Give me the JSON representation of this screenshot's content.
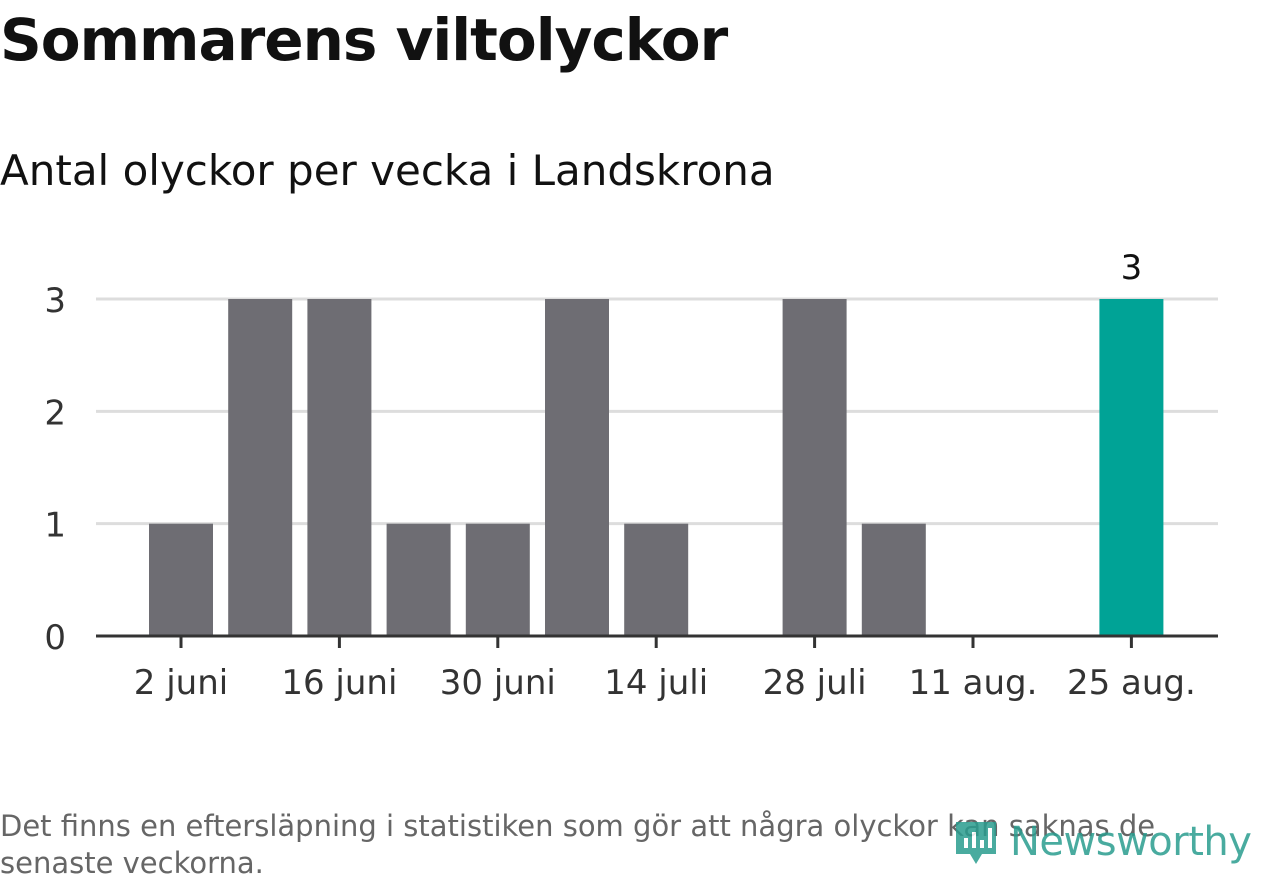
{
  "title": "Sommarens viltolyckor",
  "subtitle": "Antal olyckor per vecka i Landskrona",
  "footnote": "Det finns en eftersläpning i statistiken som gör att några olyckor kan saknas de senaste veckorna.",
  "brand": {
    "name": "Newsworthy",
    "icon": "newsworthy-logo-icon",
    "color": "#2a9d8f"
  },
  "chart_data": {
    "type": "bar",
    "categories": [
      "2 juni",
      "9 juni",
      "16 juni",
      "23 juni",
      "30 juni",
      "7 juli",
      "14 juli",
      "21 juli",
      "28 juli",
      "4 aug.",
      "11 aug.",
      "18 aug.",
      "25 aug."
    ],
    "values": [
      1,
      3,
      3,
      1,
      1,
      3,
      1,
      0,
      3,
      1,
      0,
      0,
      3
    ],
    "x_tick_labels": [
      "2 juni",
      "16 juni",
      "30 juni",
      "14 juli",
      "28 juli",
      "11 aug.",
      "25 aug."
    ],
    "y_ticks": [
      0,
      1,
      2,
      3
    ],
    "ylim": [
      0,
      3
    ],
    "grid": true,
    "highlight_last": true,
    "highlight_label": "3",
    "colors": {
      "bar": "#6e6d73",
      "highlight": "#00a396",
      "grid": "#dddddd",
      "axis": "#333333"
    },
    "xlabel": "",
    "ylabel": ""
  }
}
